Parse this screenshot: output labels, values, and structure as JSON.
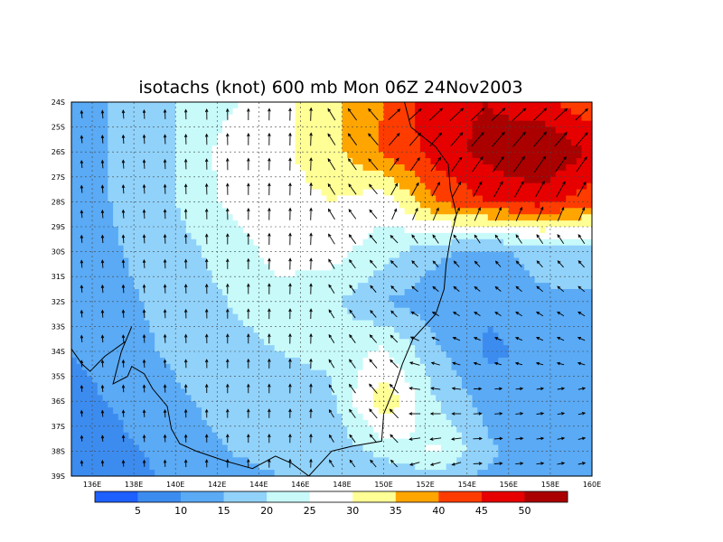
{
  "chart_data": {
    "type": "heatmap",
    "title": "isotachs (knot) 600 mb Mon 06Z 24Nov2003",
    "x_ticks": [
      "136E",
      "138E",
      "140E",
      "142E",
      "144E",
      "146E",
      "148E",
      "150E",
      "152E",
      "154E",
      "156E",
      "158E",
      "160E"
    ],
    "y_ticks": [
      "24S",
      "25S",
      "26S",
      "27S",
      "28S",
      "29S",
      "30S",
      "31S",
      "32S",
      "33S",
      "34S",
      "35S",
      "36S",
      "37S",
      "38S",
      "39S"
    ],
    "xlim": [
      135,
      160
    ],
    "ylim": [
      -39,
      -24
    ],
    "grid": true,
    "colorbar": {
      "levels": [
        5,
        10,
        15,
        20,
        25,
        30,
        35,
        40,
        45,
        50
      ],
      "labels": [
        "5",
        "10",
        "15",
        "20",
        "25",
        "30",
        "35",
        "40",
        "45",
        "50"
      ],
      "colors": [
        "#1e5fff",
        "#3c8cf0",
        "#5aaaf5",
        "#91d2fa",
        "#c8fafa",
        "#ffffff",
        "#ffff96",
        "#ffa500",
        "#ff3c00",
        "#e60000",
        "#aa0000"
      ]
    },
    "wind_speed_knots": {
      "lons": [
        135,
        137.5,
        140,
        142.5,
        145,
        147.5,
        150,
        152.5,
        155,
        157.5,
        160
      ],
      "lats": [
        -24,
        -26,
        -28,
        -30,
        -32,
        -34,
        -36,
        -38,
        -39
      ],
      "values": [
        [
          12,
          16,
          20,
          24,
          28,
          34,
          40,
          48,
          50,
          46,
          42
        ],
        [
          12,
          16,
          20,
          27,
          29,
          33,
          41,
          47,
          52,
          56,
          49
        ],
        [
          12,
          16,
          20,
          26,
          28,
          30,
          27,
          40,
          45,
          47,
          42
        ],
        [
          12,
          15,
          18,
          22,
          27,
          27,
          22,
          16,
          13,
          17,
          18
        ],
        [
          11,
          14,
          17,
          20,
          23,
          21,
          15,
          12,
          11,
          14,
          14
        ],
        [
          10,
          13,
          16,
          18,
          20,
          21,
          26,
          16,
          9,
          11,
          12
        ],
        [
          8,
          11,
          14,
          17,
          18,
          19,
          34,
          20,
          13,
          11,
          10
        ],
        [
          6,
          9,
          12,
          15,
          16,
          16,
          22,
          26,
          16,
          12,
          11
        ],
        [
          5,
          8,
          11,
          14,
          15,
          15,
          16,
          18,
          14,
          12,
          11
        ]
      ]
    },
    "vectors_note": "Wind vectors drawn at each 1-degree grid point"
  }
}
